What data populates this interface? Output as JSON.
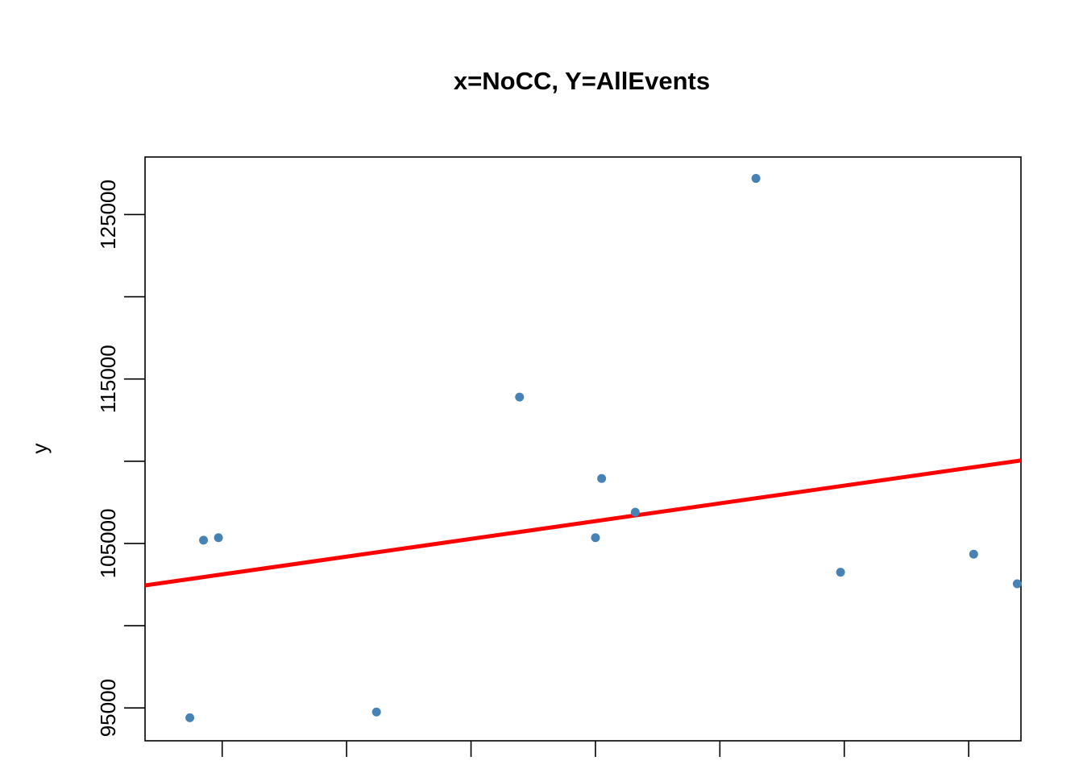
{
  "chart_data": {
    "type": "scatter",
    "title": "x=NoCC, Y=AllEvents",
    "xlabel": "",
    "ylabel": "y",
    "xlim": [
      0.38,
      7.42
    ],
    "ylim": [
      93000,
      128500
    ],
    "x_ticks": [
      1,
      2,
      3,
      4,
      5,
      6,
      7
    ],
    "x_tick_labels": [
      "",
      "",
      "",
      "",
      "",
      "",
      ""
    ],
    "y_ticks": [
      95000,
      100000,
      105000,
      110000,
      115000,
      120000,
      125000
    ],
    "y_tick_labels": [
      "95000",
      "",
      "105000",
      "",
      "115000",
      "",
      "125000"
    ],
    "grid": false,
    "legend": "none",
    "series": [
      {
        "points": [
          {
            "x": 0.74,
            "y": 94400
          },
          {
            "x": 0.85,
            "y": 105200
          },
          {
            "x": 0.97,
            "y": 105350
          },
          {
            "x": 2.24,
            "y": 94750
          },
          {
            "x": 3.39,
            "y": 113900
          },
          {
            "x": 4.0,
            "y": 105350
          },
          {
            "x": 4.05,
            "y": 108950
          },
          {
            "x": 4.32,
            "y": 106900
          },
          {
            "x": 5.29,
            "y": 127200
          },
          {
            "x": 5.97,
            "y": 103250
          },
          {
            "x": 7.04,
            "y": 104350
          },
          {
            "x": 7.39,
            "y": 102550
          }
        ],
        "color": "#4682B4"
      }
    ],
    "regression_line": {
      "x": [
        0.38,
        7.42
      ],
      "y": [
        102450,
        110050
      ],
      "color": "#FF0000"
    }
  }
}
